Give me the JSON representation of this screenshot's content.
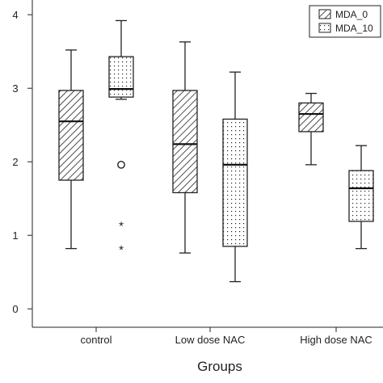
{
  "chart_data": {
    "type": "boxplot",
    "title": "",
    "xlabel": "Groups",
    "ylabel": "",
    "categories": [
      "control",
      "Low dose NAC",
      "High dose NAC"
    ],
    "ylim": [
      -0.25,
      4.2
    ],
    "yticks": [
      0,
      1,
      2,
      3,
      4
    ],
    "grid": false,
    "legend_position": "top-right",
    "series": [
      {
        "name": "MDA_0",
        "fill_pattern": "diagonal-hatch",
        "boxes": [
          {
            "min": 0.82,
            "q1": 1.75,
            "median": 2.55,
            "q3": 2.97,
            "max": 3.52,
            "outliers": []
          },
          {
            "min": 0.76,
            "q1": 1.58,
            "median": 2.24,
            "q3": 2.97,
            "max": 3.63,
            "outliers": []
          },
          {
            "min": 1.96,
            "q1": 2.41,
            "median": 2.65,
            "q3": 2.8,
            "max": 2.93,
            "outliers": []
          }
        ]
      },
      {
        "name": "MDA_10",
        "fill_pattern": "dotted",
        "boxes": [
          {
            "min": 2.85,
            "q1": 2.88,
            "median": 2.99,
            "q3": 3.43,
            "max": 3.92,
            "outliers": [
              {
                "value": 1.96,
                "marker": "o"
              },
              {
                "value": 1.16,
                "marker": "*"
              },
              {
                "value": 0.84,
                "marker": "*"
              }
            ]
          },
          {
            "min": 0.37,
            "q1": 0.85,
            "median": 1.96,
            "q3": 2.58,
            "max": 3.22,
            "outliers": []
          },
          {
            "min": 0.82,
            "q1": 1.19,
            "median": 1.64,
            "q3": 1.88,
            "max": 2.22,
            "outliers": []
          }
        ]
      }
    ]
  }
}
